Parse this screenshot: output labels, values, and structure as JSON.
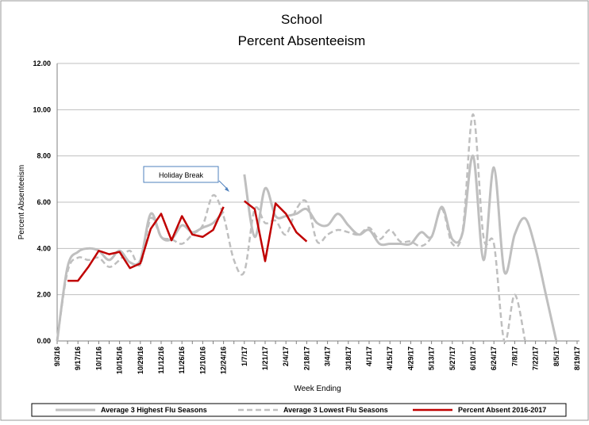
{
  "chart_data": {
    "type": "line",
    "title": [
      "School",
      "Percent Absenteeism"
    ],
    "x_label": "Week Ending",
    "y_label": "Percent Absenteeism",
    "annotation": "Holiday Break",
    "categories": [
      "9/3/16",
      null,
      "9/17/16",
      null,
      "10/1/16",
      null,
      "10/15/16",
      null,
      "10/29/16",
      null,
      "11/12/16",
      null,
      "11/26/16",
      null,
      "12/10/16",
      null,
      "12/24/16",
      null,
      "1/7/17",
      null,
      "1/21/17",
      null,
      "2/4/17",
      null,
      "2/18/17",
      null,
      "3/4/17",
      null,
      "3/18/17",
      null,
      "4/1/17",
      null,
      "4/15/17",
      null,
      "4/29/17",
      null,
      "5/13/17",
      null,
      "5/27/17",
      null,
      "6/10/17",
      null,
      "6/24/17",
      null,
      "7/8/17",
      null,
      "7/22/17",
      null,
      "8/5/17",
      null,
      "8/19/17"
    ],
    "ylim": [
      0,
      12
    ],
    "yticks": [
      {
        "value": 0,
        "label": "0.00"
      },
      {
        "value": 2,
        "label": "2.00"
      },
      {
        "value": 4,
        "label": "4.00"
      },
      {
        "value": 6,
        "label": "6.00"
      },
      {
        "value": 8,
        "label": "8.00"
      },
      {
        "value": 10,
        "label": "10.00"
      },
      {
        "value": 12,
        "label": "12.00"
      }
    ],
    "grid": true,
    "legend": "bottom",
    "series": [
      {
        "name": "Average 3 Highest Flu Seasons",
        "color": "#bfbfbf",
        "dash": false,
        "smooth": true,
        "width": 3,
        "values": [
          0,
          3.2,
          3.85,
          4.0,
          3.9,
          3.5,
          3.9,
          3.4,
          3.5,
          5.5,
          4.5,
          4.4,
          5.0,
          4.7,
          4.9,
          5.1,
          5.6,
          null,
          7.2,
          4.5,
          6.6,
          5.4,
          5.4,
          5.5,
          5.7,
          5.1,
          5.0,
          5.5,
          5.0,
          4.6,
          4.8,
          4.2,
          4.2,
          4.2,
          4.2,
          4.7,
          4.5,
          5.8,
          4.4,
          4.7,
          8.0,
          3.5,
          7.5,
          3.0,
          4.6,
          5.3,
          4.0,
          2.0,
          0.0,
          null,
          null
        ]
      },
      {
        "name": "Average 3 Lowest Flu Seasons",
        "color": "#bfbfbf",
        "dash": true,
        "smooth": true,
        "width": 2.5,
        "values": [
          0,
          3.0,
          3.6,
          3.5,
          3.6,
          3.2,
          3.5,
          3.9,
          3.3,
          5.3,
          4.5,
          4.4,
          4.2,
          4.6,
          5.0,
          6.3,
          5.4,
          3.5,
          3.0,
          5.7,
          5.1,
          5.2,
          4.6,
          5.7,
          6.0,
          4.3,
          4.6,
          4.8,
          4.7,
          4.6,
          4.9,
          4.4,
          4.8,
          4.3,
          4.3,
          4.1,
          4.5,
          5.7,
          4.2,
          4.8,
          9.8,
          4.5,
          4.2,
          0.0,
          2.0,
          0.0,
          null,
          null,
          null,
          null,
          null
        ]
      },
      {
        "name": "Percent Absent 2016-2017",
        "color": "#c00000",
        "dash": false,
        "smooth": false,
        "width": 2.5,
        "values": [
          null,
          2.6,
          2.6,
          3.2,
          3.9,
          3.75,
          3.85,
          3.15,
          3.35,
          4.85,
          5.5,
          4.35,
          5.4,
          4.6,
          4.5,
          4.8,
          5.8,
          null,
          6.05,
          5.7,
          3.45,
          5.95,
          5.5,
          4.7,
          4.3,
          null,
          null,
          null,
          null,
          null,
          null,
          null,
          null,
          null,
          null,
          null,
          null,
          null,
          null,
          null,
          null,
          null,
          null,
          null,
          null,
          null,
          null,
          null,
          null,
          null,
          null
        ]
      }
    ]
  }
}
